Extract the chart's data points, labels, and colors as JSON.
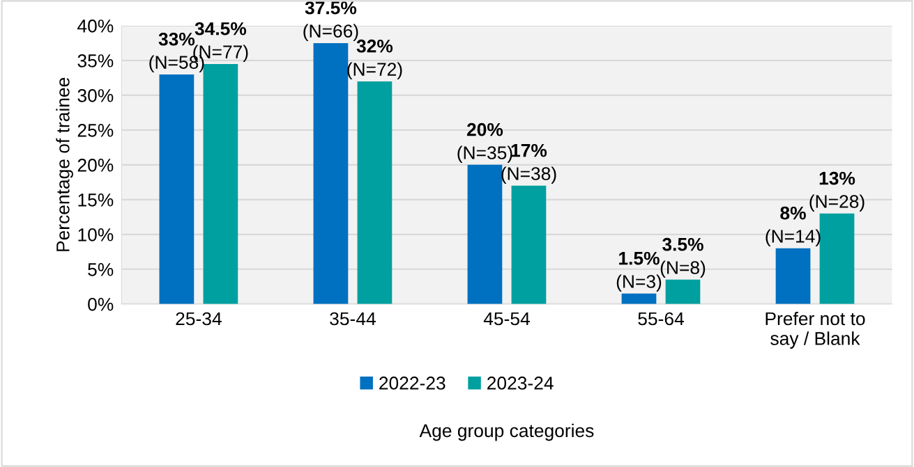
{
  "chart_data": {
    "type": "bar",
    "xlabel": "Age group categories",
    "ylabel": "Percentage of trainee",
    "categories": [
      "25-34",
      "35-44",
      "45-54",
      "55-64",
      "Prefer not to\nsay / Blank"
    ],
    "series": [
      {
        "name": "2022-23",
        "color": "#0070c0",
        "values": [
          33,
          37.5,
          20,
          1.5,
          8
        ],
        "value_labels": [
          "33%\n(N=58)",
          "37.5%\n(N=66)",
          "20%\n(N=35)",
          "1.5%\n(N=3)",
          "8%\n(N=14)"
        ]
      },
      {
        "name": "2023-24",
        "color": "#00a0a0",
        "values": [
          34.5,
          32,
          17,
          3.5,
          13
        ],
        "value_labels": [
          "34.5%\n(N=77)",
          "32%\n(N=72)",
          "17%\n(N=38)",
          "3.5%\n(N=8)",
          "13%\n(N=28)"
        ]
      }
    ],
    "ylim": [
      0,
      40
    ],
    "yticks": [
      {
        "value": 0,
        "label": "0%"
      },
      {
        "value": 5,
        "label": "5%"
      },
      {
        "value": 10,
        "label": "10%"
      },
      {
        "value": 15,
        "label": "15%"
      },
      {
        "value": 20,
        "label": "20%"
      },
      {
        "value": 25,
        "label": "25%"
      },
      {
        "value": 30,
        "label": "30%"
      },
      {
        "value": 35,
        "label": "35%"
      },
      {
        "value": 40,
        "label": "40%"
      }
    ],
    "grid": "y",
    "legend": "bottom"
  }
}
